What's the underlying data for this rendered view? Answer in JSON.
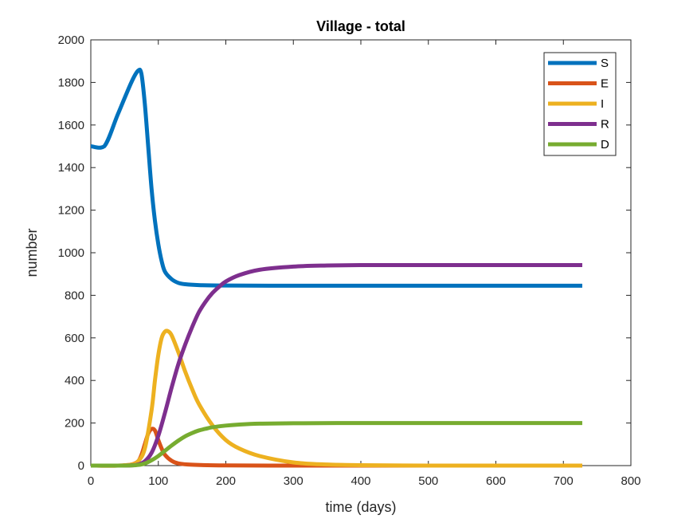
{
  "chart_data": {
    "type": "line",
    "title": "Village - total",
    "xlabel": "time (days)",
    "ylabel": "number",
    "xlim": [
      0,
      800
    ],
    "ylim": [
      0,
      2000
    ],
    "xticks": [
      0,
      100,
      200,
      300,
      400,
      500,
      600,
      700,
      800
    ],
    "yticks": [
      0,
      200,
      400,
      600,
      800,
      1000,
      1200,
      1400,
      1600,
      1800,
      2000
    ],
    "grid": false,
    "legend_position": "top-right",
    "series": [
      {
        "name": "S",
        "color": "#0072BD",
        "x": [
          0,
          20,
          40,
          60,
          70,
          75,
          80,
          85,
          90,
          95,
          100,
          105,
          110,
          120,
          130,
          140,
          160,
          200,
          300,
          400,
          500,
          600,
          728
        ],
        "y": [
          1500,
          1500,
          1650,
          1800,
          1855,
          1840,
          1700,
          1500,
          1300,
          1150,
          1040,
          960,
          910,
          875,
          858,
          852,
          848,
          846,
          845,
          845,
          845,
          845,
          845
        ]
      },
      {
        "name": "E",
        "color": "#D95319",
        "x": [
          0,
          40,
          60,
          70,
          75,
          80,
          85,
          90,
          95,
          100,
          105,
          110,
          120,
          130,
          150,
          200,
          300,
          400,
          500,
          600,
          728
        ],
        "y": [
          0,
          0,
          5,
          20,
          50,
          100,
          150,
          172,
          165,
          120,
          80,
          50,
          22,
          10,
          4,
          1,
          0,
          0,
          0,
          0,
          0
        ]
      },
      {
        "name": "I",
        "color": "#EDB120",
        "x": [
          0,
          40,
          60,
          70,
          80,
          90,
          95,
          100,
          105,
          110,
          115,
          120,
          130,
          140,
          150,
          160,
          180,
          200,
          220,
          250,
          300,
          350,
          400,
          500,
          600,
          728
        ],
        "y": [
          0,
          0,
          5,
          20,
          80,
          260,
          400,
          520,
          600,
          630,
          630,
          610,
          530,
          440,
          360,
          290,
          190,
          120,
          80,
          45,
          15,
          5,
          2,
          0,
          0,
          0
        ]
      },
      {
        "name": "R",
        "color": "#7E2F8E",
        "x": [
          0,
          40,
          60,
          70,
          80,
          90,
          100,
          110,
          120,
          130,
          140,
          150,
          160,
          170,
          180,
          190,
          200,
          220,
          250,
          300,
          350,
          400,
          500,
          600,
          728
        ],
        "y": [
          0,
          0,
          1,
          5,
          20,
          60,
          140,
          250,
          370,
          480,
          570,
          650,
          720,
          770,
          810,
          840,
          865,
          895,
          920,
          935,
          940,
          942,
          942,
          942,
          942
        ]
      },
      {
        "name": "D",
        "color": "#77AC30",
        "x": [
          0,
          40,
          60,
          70,
          80,
          90,
          100,
          110,
          120,
          130,
          140,
          150,
          160,
          170,
          180,
          200,
          220,
          250,
          300,
          400,
          500,
          600,
          728
        ],
        "y": [
          0,
          0,
          1,
          3,
          10,
          25,
          45,
          70,
          95,
          118,
          138,
          153,
          165,
          173,
          180,
          188,
          193,
          197,
          199,
          200,
          200,
          200,
          200
        ]
      }
    ]
  }
}
